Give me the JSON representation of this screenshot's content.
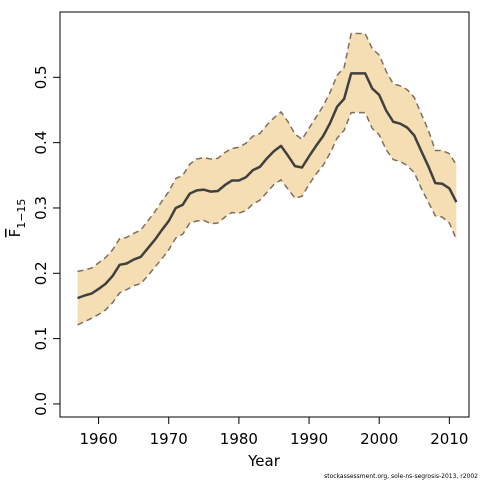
{
  "chart_data": {
    "type": "line",
    "xlabel": "Year",
    "ylabel": "F",
    "ylabel_sub": "1−15",
    "xlim": [
      1954.5,
      2012.8
    ],
    "ylim": [
      -0.02,
      0.6
    ],
    "xticks": [
      1960,
      1970,
      1980,
      1990,
      2000,
      2010
    ],
    "xtick_labels": [
      "1960",
      "1970",
      "1980",
      "1990",
      "2000",
      "2010"
    ],
    "yticks": [
      0.0,
      0.1,
      0.2,
      0.3,
      0.4,
      0.5
    ],
    "ytick_labels": [
      "0.0",
      "0.1",
      "0.2",
      "0.3",
      "0.4",
      "0.5"
    ],
    "grid": false,
    "colors": {
      "band": "#f5deb3",
      "line": "#404040",
      "bound": "#7f6f5f",
      "axis": "#000000"
    },
    "x": [
      1957,
      1958,
      1959,
      1960,
      1961,
      1962,
      1963,
      1964,
      1965,
      1966,
      1967,
      1968,
      1969,
      1970,
      1971,
      1972,
      1973,
      1974,
      1975,
      1976,
      1977,
      1978,
      1979,
      1980,
      1981,
      1982,
      1983,
      1984,
      1985,
      1986,
      1987,
      1988,
      1989,
      1990,
      1991,
      1992,
      1993,
      1994,
      1995,
      1996,
      1997,
      1998,
      1999,
      2000,
      2001,
      2002,
      2003,
      2004,
      2005,
      2006,
      2007,
      2008,
      2009,
      2010,
      2011
    ],
    "series": [
      {
        "role": "estimate",
        "values": [
          0.162,
          0.166,
          0.169,
          0.176,
          0.184,
          0.196,
          0.213,
          0.215,
          0.221,
          0.225,
          0.238,
          0.251,
          0.266,
          0.28,
          0.3,
          0.305,
          0.322,
          0.327,
          0.328,
          0.325,
          0.326,
          0.335,
          0.342,
          0.342,
          0.347,
          0.358,
          0.363,
          0.376,
          0.387,
          0.395,
          0.38,
          0.364,
          0.362,
          0.379,
          0.395,
          0.41,
          0.43,
          0.455,
          0.467,
          0.506,
          0.506,
          0.506,
          0.483,
          0.473,
          0.449,
          0.432,
          0.429,
          0.423,
          0.411,
          0.387,
          0.364,
          0.338,
          0.337,
          0.33,
          0.309
        ]
      },
      {
        "role": "upper",
        "values": [
          0.203,
          0.205,
          0.208,
          0.216,
          0.224,
          0.236,
          0.253,
          0.255,
          0.261,
          0.266,
          0.28,
          0.294,
          0.31,
          0.325,
          0.345,
          0.35,
          0.367,
          0.375,
          0.377,
          0.375,
          0.376,
          0.385,
          0.391,
          0.393,
          0.399,
          0.41,
          0.414,
          0.427,
          0.438,
          0.447,
          0.432,
          0.413,
          0.405,
          0.422,
          0.439,
          0.456,
          0.477,
          0.503,
          0.515,
          0.567,
          0.567,
          0.567,
          0.544,
          0.534,
          0.509,
          0.49,
          0.487,
          0.481,
          0.469,
          0.444,
          0.419,
          0.388,
          0.388,
          0.383,
          0.366
        ]
      },
      {
        "role": "lower",
        "values": [
          0.121,
          0.126,
          0.131,
          0.137,
          0.144,
          0.155,
          0.17,
          0.175,
          0.181,
          0.184,
          0.196,
          0.209,
          0.222,
          0.236,
          0.254,
          0.26,
          0.277,
          0.28,
          0.281,
          0.276,
          0.277,
          0.286,
          0.293,
          0.292,
          0.296,
          0.306,
          0.312,
          0.324,
          0.336,
          0.343,
          0.329,
          0.315,
          0.318,
          0.336,
          0.352,
          0.365,
          0.384,
          0.407,
          0.419,
          0.446,
          0.446,
          0.446,
          0.422,
          0.412,
          0.389,
          0.374,
          0.371,
          0.365,
          0.354,
          0.33,
          0.309,
          0.288,
          0.286,
          0.277,
          0.252
        ]
      }
    ]
  },
  "footer": {
    "credit": "stockassessment.org, sole-ns-segrosis-2013, r2002"
  }
}
